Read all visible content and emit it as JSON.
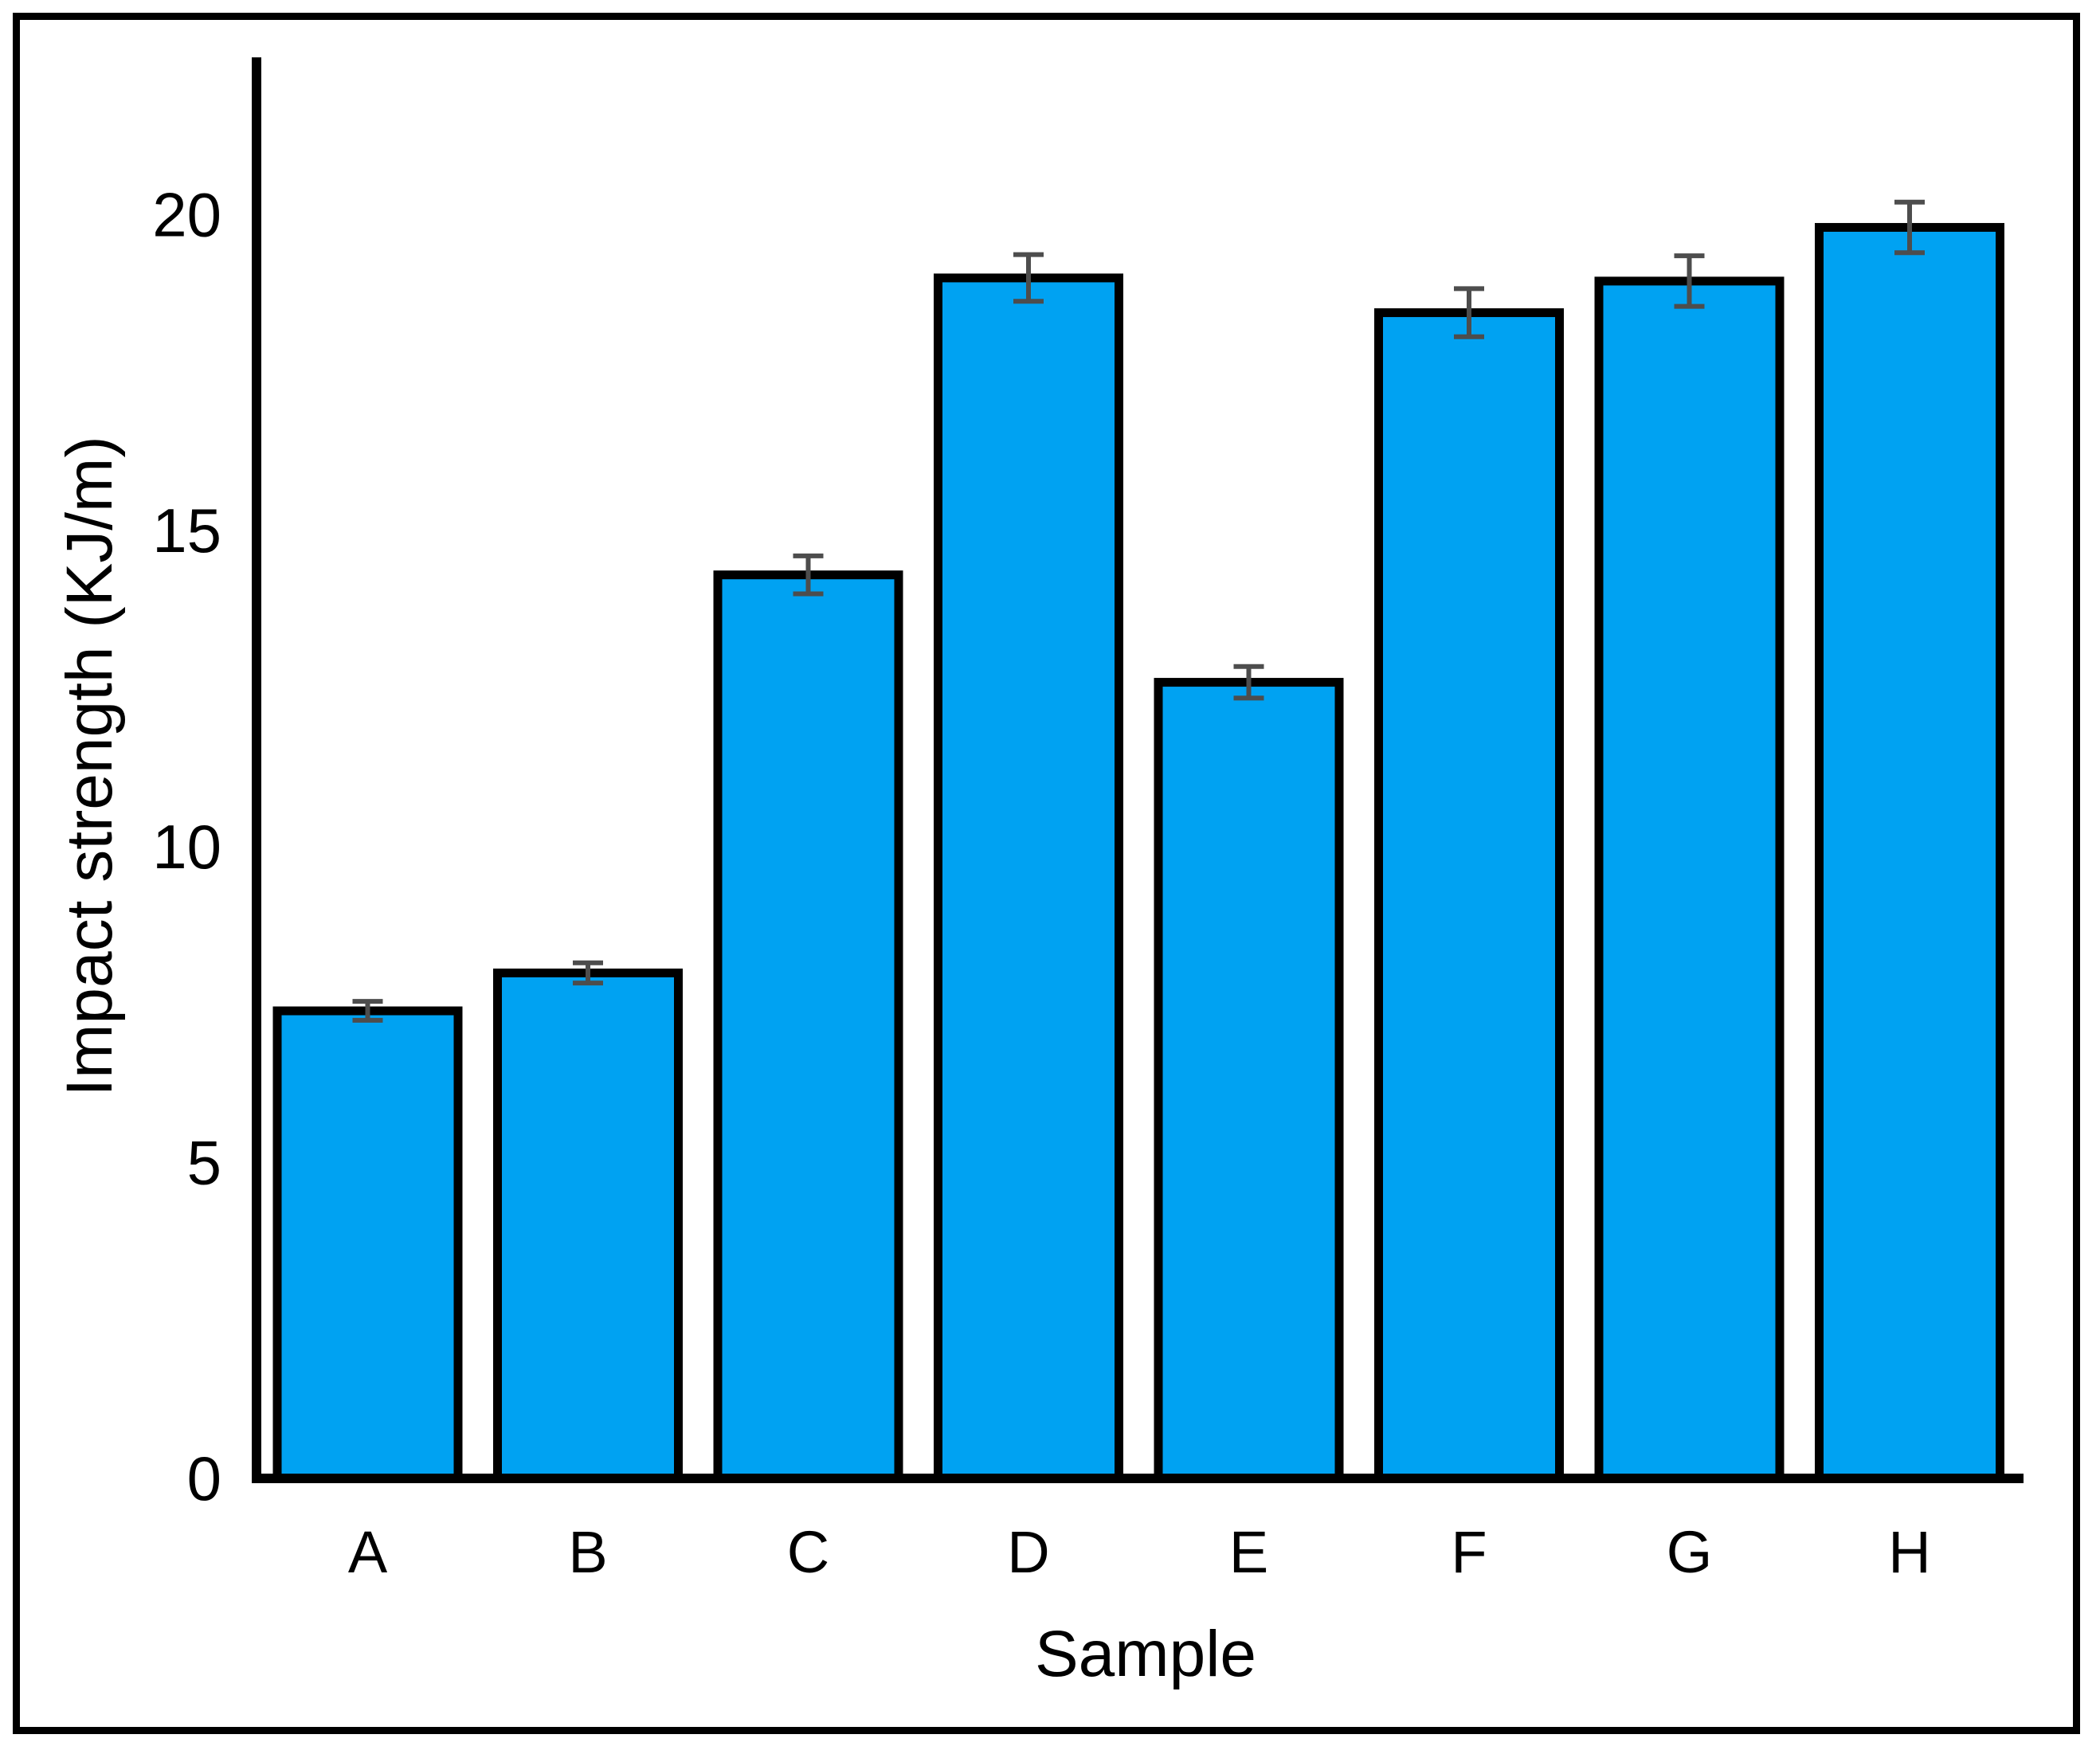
{
  "chart_data": {
    "type": "bar",
    "title": "",
    "xlabel": "Sample",
    "ylabel": "Impact strength (KJ/m)",
    "categories": [
      "A",
      "B",
      "C",
      "D",
      "E",
      "F",
      "G",
      "H"
    ],
    "values": [
      7.4,
      8.0,
      14.3,
      19.0,
      12.6,
      18.45,
      18.95,
      19.8
    ],
    "error_bars": [
      0.15,
      0.16,
      0.3,
      0.37,
      0.25,
      0.38,
      0.4,
      0.4
    ],
    "yticks": [
      0,
      5,
      10,
      15,
      20
    ],
    "ylim": [
      0,
      22.5
    ],
    "grid": false,
    "legend": false,
    "colors": {
      "bar_fill": "#00A2F2",
      "bar_stroke": "#000000",
      "error_bar": "#4d4d4d",
      "axis": "#000000",
      "text": "#000000",
      "frame": "#000000",
      "background": "#FFFFFF"
    }
  }
}
